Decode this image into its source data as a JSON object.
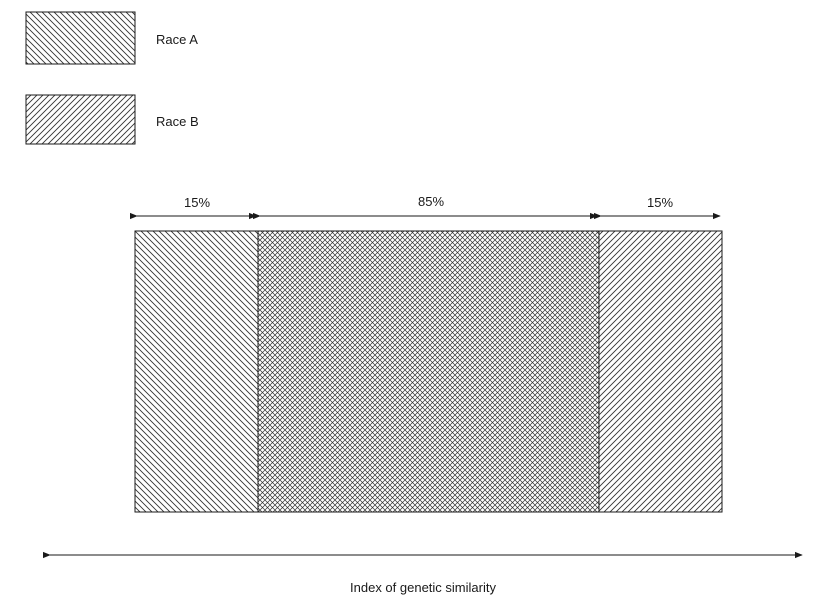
{
  "legend": {
    "items": [
      {
        "label": "Race A",
        "pattern": "hatch-back-diagonal"
      },
      {
        "label": "Race B",
        "pattern": "hatch-forward-diagonal"
      }
    ]
  },
  "segments": [
    {
      "label": "15%",
      "pattern": "hatch-back-diagonal",
      "group": "Race A only"
    },
    {
      "label": "85%",
      "pattern": "cross-hatch",
      "group": "overlap"
    },
    {
      "label": "15%",
      "pattern": "hatch-forward-diagonal",
      "group": "Race B only"
    }
  ],
  "axis": {
    "label": "Index of genetic similarity"
  },
  "colors": {
    "stroke": "#1a1a1a",
    "hatch": "#333333",
    "background": "#ffffff"
  }
}
